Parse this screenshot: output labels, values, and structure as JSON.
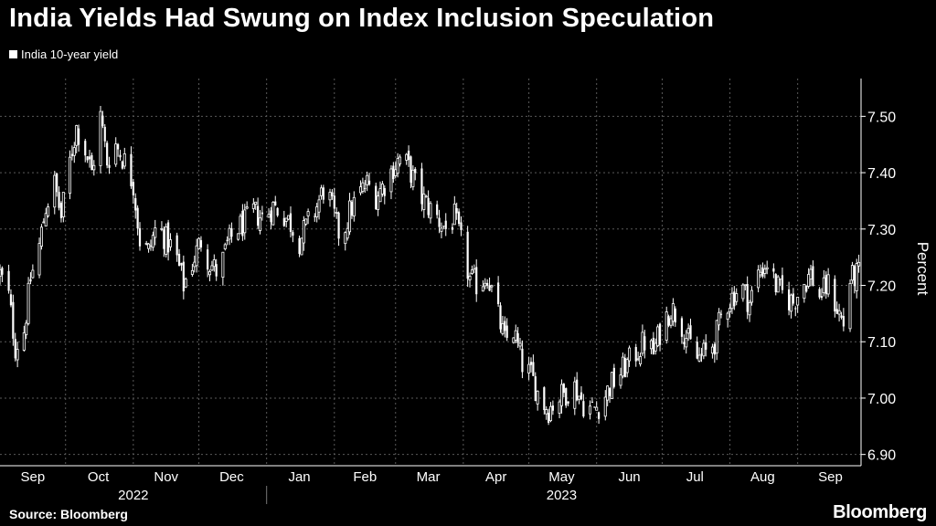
{
  "title": "India Yields Had Swung on Index Inclusion Speculation",
  "legend_label": "India 10-year yield",
  "source": "Source: Bloomberg",
  "brand": "Bloomberg",
  "colors": {
    "background": "#000000",
    "candle": "#ffffff",
    "grid": "#5a5a5a",
    "text": "#ffffff"
  },
  "chart_data": {
    "type": "candlestick",
    "title": "India Yields Had Swung on Index Inclusion Speculation",
    "ylabel": "Percent",
    "ylim": [
      6.88,
      7.58
    ],
    "yticks": [
      {
        "value": 6.9,
        "label": "6.90"
      },
      {
        "value": 7.0,
        "label": "7.00"
      },
      {
        "value": 7.1,
        "label": "7.10"
      },
      {
        "value": 7.2,
        "label": "7.20"
      },
      {
        "value": 7.3,
        "label": "7.30"
      },
      {
        "value": 7.4,
        "label": "7.40"
      },
      {
        "value": 7.5,
        "label": "7.50"
      }
    ],
    "x_start": "2022-09-01",
    "x_end": "2023-09-30",
    "xticks": [
      {
        "label": "Sep",
        "date": "2022-09-16"
      },
      {
        "label": "Oct",
        "date": "2022-10-16"
      },
      {
        "label": "Nov",
        "date": "2022-11-16"
      },
      {
        "label": "Dec",
        "date": "2022-12-16"
      },
      {
        "label": "Jan",
        "date": "2023-01-16"
      },
      {
        "label": "Feb",
        "date": "2023-02-15"
      },
      {
        "label": "Mar",
        "date": "2023-03-16"
      },
      {
        "label": "Apr",
        "date": "2023-04-16"
      },
      {
        "label": "May",
        "date": "2023-05-16"
      },
      {
        "label": "Jun",
        "date": "2023-06-16"
      },
      {
        "label": "Jul",
        "date": "2023-07-16"
      },
      {
        "label": "Aug",
        "date": "2023-08-16"
      },
      {
        "label": "Sep",
        "date": "2023-09-16"
      }
    ],
    "gridlines": [
      "2022-10-01",
      "2022-11-01",
      "2022-12-01",
      "2023-01-01",
      "2023-02-01",
      "2023-03-01",
      "2023-04-01",
      "2023-05-01",
      "2023-06-01",
      "2023-07-01",
      "2023-08-01",
      "2023-09-01"
    ],
    "years": [
      {
        "label": "2022",
        "date": "2022-11-01"
      },
      {
        "label": "2023",
        "date": "2023-05-16"
      }
    ],
    "year_divider": "2023-01-01",
    "grid": true,
    "legend": "top-left",
    "anchors": [
      [
        "2022-09-01",
        7.22
      ],
      [
        "2022-09-05",
        7.18
      ],
      [
        "2022-09-08",
        7.09
      ],
      [
        "2022-09-12",
        7.12
      ],
      [
        "2022-09-15",
        7.21
      ],
      [
        "2022-09-19",
        7.27
      ],
      [
        "2022-09-22",
        7.34
      ],
      [
        "2022-09-26",
        7.38
      ],
      [
        "2022-09-29",
        7.32
      ],
      [
        "2022-10-03",
        7.42
      ],
      [
        "2022-10-06",
        7.48
      ],
      [
        "2022-10-10",
        7.44
      ],
      [
        "2022-10-13",
        7.4
      ],
      [
        "2022-10-17",
        7.5
      ],
      [
        "2022-10-20",
        7.42
      ],
      [
        "2022-10-24",
        7.45
      ],
      [
        "2022-10-28",
        7.42
      ],
      [
        "2022-11-01",
        7.38
      ],
      [
        "2022-11-04",
        7.28
      ],
      [
        "2022-11-08",
        7.26
      ],
      [
        "2022-11-12",
        7.31
      ],
      [
        "2022-11-16",
        7.28
      ],
      [
        "2022-11-20",
        7.26
      ],
      [
        "2022-11-24",
        7.2
      ],
      [
        "2022-11-28",
        7.24
      ],
      [
        "2022-12-02",
        7.28
      ],
      [
        "2022-12-06",
        7.24
      ],
      [
        "2022-12-10",
        7.22
      ],
      [
        "2022-12-14",
        7.27
      ],
      [
        "2022-12-18",
        7.3
      ],
      [
        "2022-12-22",
        7.31
      ],
      [
        "2022-12-26",
        7.33
      ],
      [
        "2022-12-30",
        7.32
      ],
      [
        "2023-01-04",
        7.34
      ],
      [
        "2023-01-08",
        7.33
      ],
      [
        "2023-01-12",
        7.31
      ],
      [
        "2023-01-16",
        7.28
      ],
      [
        "2023-01-20",
        7.31
      ],
      [
        "2023-01-24",
        7.34
      ],
      [
        "2023-01-28",
        7.38
      ],
      [
        "2023-02-01",
        7.32
      ],
      [
        "2023-02-04",
        7.28
      ],
      [
        "2023-02-08",
        7.33
      ],
      [
        "2023-02-12",
        7.36
      ],
      [
        "2023-02-16",
        7.38
      ],
      [
        "2023-02-20",
        7.36
      ],
      [
        "2023-02-24",
        7.38
      ],
      [
        "2023-02-28",
        7.41
      ],
      [
        "2023-03-04",
        7.43
      ],
      [
        "2023-03-08",
        7.4
      ],
      [
        "2023-03-12",
        7.36
      ],
      [
        "2023-03-16",
        7.34
      ],
      [
        "2023-03-20",
        7.32
      ],
      [
        "2023-03-24",
        7.3
      ],
      [
        "2023-03-28",
        7.32
      ],
      [
        "2023-04-01",
        7.26
      ],
      [
        "2023-04-04",
        7.21
      ],
      [
        "2023-04-08",
        7.2
      ],
      [
        "2023-04-12",
        7.22
      ],
      [
        "2023-04-16",
        7.16
      ],
      [
        "2023-04-20",
        7.1
      ],
      [
        "2023-04-24",
        7.12
      ],
      [
        "2023-04-28",
        7.06
      ],
      [
        "2023-05-02",
        7.04
      ],
      [
        "2023-05-06",
        7.0
      ],
      [
        "2023-05-10",
        6.98
      ],
      [
        "2023-05-14",
        7.0
      ],
      [
        "2023-05-18",
        7.01
      ],
      [
        "2023-05-22",
        7.02
      ],
      [
        "2023-05-26",
        6.99
      ],
      [
        "2023-05-30",
        6.98
      ],
      [
        "2023-06-03",
        6.99
      ],
      [
        "2023-06-07",
        7.02
      ],
      [
        "2023-06-11",
        7.04
      ],
      [
        "2023-06-15",
        7.06
      ],
      [
        "2023-06-19",
        7.08
      ],
      [
        "2023-06-23",
        7.1
      ],
      [
        "2023-06-27",
        7.08
      ],
      [
        "2023-07-01",
        7.13
      ],
      [
        "2023-07-05",
        7.16
      ],
      [
        "2023-07-09",
        7.14
      ],
      [
        "2023-07-13",
        7.1
      ],
      [
        "2023-07-17",
        7.07
      ],
      [
        "2023-07-21",
        7.08
      ],
      [
        "2023-07-25",
        7.1
      ],
      [
        "2023-07-29",
        7.16
      ],
      [
        "2023-08-02",
        7.18
      ],
      [
        "2023-08-06",
        7.2
      ],
      [
        "2023-08-10",
        7.17
      ],
      [
        "2023-08-14",
        7.22
      ],
      [
        "2023-08-18",
        7.24
      ],
      [
        "2023-08-22",
        7.2
      ],
      [
        "2023-08-26",
        7.18
      ],
      [
        "2023-08-30",
        7.17
      ],
      [
        "2023-09-03",
        7.2
      ],
      [
        "2023-09-07",
        7.22
      ],
      [
        "2023-09-11",
        7.18
      ],
      [
        "2023-09-15",
        7.2
      ],
      [
        "2023-09-19",
        7.16
      ],
      [
        "2023-09-22",
        7.13
      ],
      [
        "2023-09-25",
        7.21
      ],
      [
        "2023-09-29",
        7.22
      ]
    ]
  }
}
